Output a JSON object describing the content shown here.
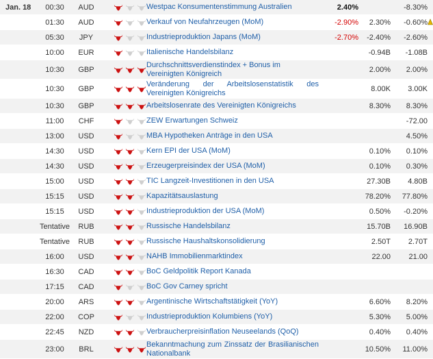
{
  "colors": {
    "bull_active": "#cc1111",
    "bull_inactive": "#cfcfcf",
    "event_link": "#1f5fa8",
    "negative_actual": "#d40000"
  },
  "icons": {
    "importance": "bull-icon",
    "marker": "warning-icon"
  },
  "rows": [
    {
      "date": "Jan. 18",
      "time": "00:30",
      "currency": "AUD",
      "importance": 1,
      "event": "Westpac Konsumentenstimmung Australien",
      "actual": "2.40%",
      "actual_style": "bold",
      "forecast": "",
      "previous": "-8.30%"
    },
    {
      "date": "",
      "time": "01:30",
      "currency": "AUD",
      "importance": 1,
      "event": "Verkauf von Neufahrzeugen (MoM)",
      "actual": "-2.90%",
      "actual_style": "red",
      "forecast": "2.30%",
      "previous": "-0.60%",
      "marker": true
    },
    {
      "date": "",
      "time": "05:30",
      "currency": "JPY",
      "importance": 1,
      "event": "Industrieproduktion Japans (MoM)",
      "actual": "-2.70%",
      "actual_style": "red",
      "forecast": "-2.40%",
      "previous": "-2.60%"
    },
    {
      "date": "",
      "time": "10:00",
      "currency": "EUR",
      "importance": 1,
      "event": "Italienische Handelsbilanz",
      "actual": "",
      "actual_style": "",
      "forecast": "-0.94B",
      "previous": "-1.08B"
    },
    {
      "date": "",
      "time": "10:30",
      "currency": "GBP",
      "importance": 3,
      "event": "Durchschnittsverdienstindex + Bonus im Vereinigten Königreich",
      "actual": "",
      "actual_style": "",
      "forecast": "2.00%",
      "previous": "2.00%",
      "tall": true
    },
    {
      "date": "",
      "time": "10:30",
      "currency": "GBP",
      "importance": 3,
      "event": "Veränderung der Arbeitslosenstatistik des Vereinigten Königreichs",
      "actual": "",
      "actual_style": "",
      "forecast": "8.00K",
      "previous": "3.00K",
      "tall": true,
      "justify": true
    },
    {
      "date": "",
      "time": "10:30",
      "currency": "GBP",
      "importance": 3,
      "event": "Arbeitslosenrate des Vereinigten Königreichs",
      "actual": "",
      "actual_style": "",
      "forecast": "8.30%",
      "previous": "8.30%"
    },
    {
      "date": "",
      "time": "11:00",
      "currency": "CHF",
      "importance": 1,
      "event": "ZEW Erwartungen Schweiz",
      "actual": "",
      "actual_style": "",
      "forecast": "",
      "previous": "-72.00"
    },
    {
      "date": "",
      "time": "13:00",
      "currency": "USD",
      "importance": 1,
      "event": "MBA Hypotheken Anträge in den USA",
      "actual": "",
      "actual_style": "",
      "forecast": "",
      "previous": "4.50%"
    },
    {
      "date": "",
      "time": "14:30",
      "currency": "USD",
      "importance": 2,
      "event": "Kern EPI der USA (MoM)",
      "actual": "",
      "actual_style": "",
      "forecast": "0.10%",
      "previous": "0.10%"
    },
    {
      "date": "",
      "time": "14:30",
      "currency": "USD",
      "importance": 2,
      "event": "Erzeugerpreisindex der USA (MoM)",
      "actual": "",
      "actual_style": "",
      "forecast": "0.10%",
      "previous": "0.30%"
    },
    {
      "date": "",
      "time": "15:00",
      "currency": "USD",
      "importance": 2,
      "event": "TIC Langzeit-Investitionen in den USA",
      "actual": "",
      "actual_style": "",
      "forecast": "27.30B",
      "previous": "4.80B"
    },
    {
      "date": "",
      "time": "15:15",
      "currency": "USD",
      "importance": 2,
      "event": "Kapazitätsauslastung",
      "actual": "",
      "actual_style": "",
      "forecast": "78.20%",
      "previous": "77.80%"
    },
    {
      "date": "",
      "time": "15:15",
      "currency": "USD",
      "importance": 2,
      "event": "Industrieproduktion der USA (MoM)",
      "actual": "",
      "actual_style": "",
      "forecast": "0.50%",
      "previous": "-0.20%"
    },
    {
      "date": "",
      "time": "Tentative",
      "currency": "RUB",
      "importance": 2,
      "event": "Russische Handelsbilanz",
      "actual": "",
      "actual_style": "",
      "forecast": "15.70B",
      "previous": "16.90B"
    },
    {
      "date": "",
      "time": "Tentative",
      "currency": "RUB",
      "importance": 2,
      "event": "Russische Haushaltskonsolidierung",
      "actual": "",
      "actual_style": "",
      "forecast": "2.50T",
      "previous": "2.70T"
    },
    {
      "date": "",
      "time": "16:00",
      "currency": "USD",
      "importance": 2,
      "event": "NAHB Immobilienmarktindex",
      "actual": "",
      "actual_style": "",
      "forecast": "22.00",
      "previous": "21.00"
    },
    {
      "date": "",
      "time": "16:30",
      "currency": "CAD",
      "importance": 2,
      "event": "BoC Geldpolitik Report Kanada",
      "actual": "",
      "actual_style": "",
      "forecast": "",
      "previous": ""
    },
    {
      "date": "",
      "time": "17:15",
      "currency": "CAD",
      "importance": 1,
      "event": "BoC Gov Carney spricht",
      "actual": "",
      "actual_style": "",
      "forecast": "",
      "previous": ""
    },
    {
      "date": "",
      "time": "20:00",
      "currency": "ARS",
      "importance": 2,
      "event": "Argentinische Wirtschaftstätigkeit (YoY)",
      "actual": "",
      "actual_style": "",
      "forecast": "6.60%",
      "previous": "8.20%"
    },
    {
      "date": "",
      "time": "22:00",
      "currency": "COP",
      "importance": 1,
      "event": "Industrieproduktion Kolumbiens (YoY)",
      "actual": "",
      "actual_style": "",
      "forecast": "5.30%",
      "previous": "5.00%"
    },
    {
      "date": "",
      "time": "22:45",
      "currency": "NZD",
      "importance": 2,
      "event": "Verbraucherpreisinflation Neuseelands (QoQ)",
      "actual": "",
      "actual_style": "",
      "forecast": "0.40%",
      "previous": "0.40%"
    },
    {
      "date": "",
      "time": "23:00",
      "currency": "BRL",
      "importance": 3,
      "event": "Bekanntmachung zum Zinssatz der Brasilianischen Nationalbank",
      "actual": "",
      "actual_style": "",
      "forecast": "10.50%",
      "previous": "11.00%",
      "tall": true,
      "justify": true
    }
  ]
}
